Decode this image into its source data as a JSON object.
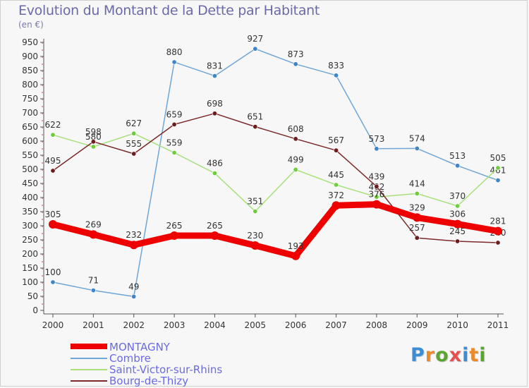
{
  "title": "Evolution du Montant de la Dette par Habitant",
  "subtitle": "(en €)",
  "logo": {
    "letters": [
      "P",
      "r",
      "o",
      "x",
      "i",
      "t",
      "i"
    ],
    "colors": [
      "#3b8ed6",
      "#e98b2a",
      "#5aa532",
      "#e35050",
      "#3b8ed6",
      "#e98b2a",
      "#5aa532"
    ]
  },
  "chart_data": {
    "type": "line",
    "x": [
      "2000",
      "2001",
      "2002",
      "2003",
      "2004",
      "2005",
      "2006",
      "2007",
      "2008",
      "2009",
      "2010",
      "2011"
    ],
    "ylim": [
      0,
      950
    ],
    "yticks": [
      0,
      50,
      100,
      150,
      200,
      250,
      300,
      350,
      400,
      450,
      500,
      550,
      600,
      650,
      700,
      750,
      800,
      850,
      900,
      950
    ],
    "grid": false,
    "legend_position": "bottom-left",
    "series": [
      {
        "name": "Combre",
        "color": "#6fa6d6",
        "marker": "#3f86c6",
        "values": [
          100,
          71,
          49,
          880,
          831,
          927,
          873,
          833,
          573,
          574,
          513,
          461
        ],
        "labels": [
          "100",
          "71",
          "49",
          "880",
          "831",
          "927",
          "873",
          "833",
          "573",
          "574",
          "513",
          "461"
        ]
      },
      {
        "name": "Saint-Victor-sur-Rhins",
        "color": "#a8e07c",
        "marker": "#6fcc3c",
        "values": [
          622,
          580,
          627,
          559,
          486,
          351,
          499,
          445,
          402,
          414,
          370,
          505
        ],
        "labels": [
          "622",
          "580",
          "627",
          "559",
          "486",
          "351",
          "499",
          "445",
          "402",
          "414",
          "370",
          "505"
        ]
      },
      {
        "name": "Bourg-de-Thizy",
        "color": "#7a2a2a",
        "marker": "#6b1c1c",
        "values": [
          495,
          598,
          555,
          659,
          698,
          651,
          608,
          567,
          439,
          257,
          245,
          240
        ],
        "labels": [
          "495",
          "598",
          "555",
          "659",
          "698",
          "651",
          "608",
          "567",
          "439",
          "257",
          "245",
          "240"
        ]
      },
      {
        "name": "MONTAGNY",
        "color": "#ee0000",
        "marker": "#ee0000",
        "values": [
          305,
          269,
          232,
          265,
          265,
          230,
          193,
          372,
          376,
          329,
          306,
          281
        ],
        "labels": [
          "305",
          "269",
          "232",
          "265",
          "265",
          "230",
          "193",
          "372",
          "376",
          "329",
          "306",
          "281"
        ]
      }
    ]
  },
  "legend": [
    {
      "name": "MONTAGNY",
      "color": "#ee0000"
    },
    {
      "name": "Combre",
      "color": "#6fa6d6"
    },
    {
      "name": "Saint-Victor-sur-Rhins",
      "color": "#a8e07c"
    },
    {
      "name": "Bourg-de-Thizy",
      "color": "#7a2a2a"
    }
  ]
}
